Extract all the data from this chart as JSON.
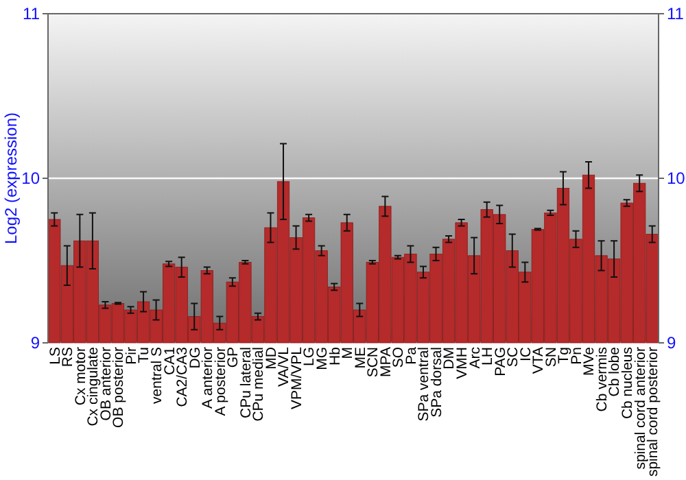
{
  "chart_data": {
    "type": "bar",
    "ylabel": "Log2 (expression)",
    "categories": [
      "LS",
      "RS",
      "Cx motor",
      "Cx cingulate",
      "OB anterior",
      "OB posterior",
      "Pir",
      "Tu",
      "ventral S",
      "CA1",
      "CA2/CA3",
      "DG",
      "A anterior",
      "A posterior",
      "GP",
      "CPu lateral",
      "CPu medial",
      "MD",
      "VA/VL",
      "VPM/VPL",
      "LG",
      "MG",
      "Hb",
      "M",
      "ME",
      "SCN",
      "MPA",
      "SO",
      "Pa",
      "SPa ventral",
      "SPa dorsal",
      "DM",
      "VMH",
      "Arc",
      "LH",
      "PAG",
      "SC",
      "IC",
      "VTA",
      "SN",
      "Tg",
      "Pn",
      "MVe",
      "Cb vermis",
      "Cb lobe",
      "Cb nucleus",
      "spinal cord anterior",
      "spinal cord posterior"
    ],
    "series": [
      {
        "color": "#b52a2a",
        "values": [
          9.75,
          9.47,
          9.62,
          9.62,
          9.23,
          9.24,
          9.2,
          9.25,
          9.2,
          9.48,
          9.46,
          9.16,
          9.44,
          9.12,
          9.37,
          9.49,
          9.16,
          9.7,
          9.98,
          9.64,
          9.76,
          9.56,
          9.34,
          9.73,
          9.2,
          9.49,
          9.83,
          9.52,
          9.54,
          9.43,
          9.54,
          9.63,
          9.73,
          9.53,
          9.81,
          9.78,
          9.56,
          9.43,
          9.69,
          9.79,
          9.94,
          9.63,
          10.02,
          9.53,
          9.51,
          9.85,
          9.97,
          9.66
        ],
        "errors": [
          0.04,
          0.12,
          0.16,
          0.17,
          0.02,
          0.005,
          0.02,
          0.06,
          0.06,
          0.015,
          0.06,
          0.08,
          0.02,
          0.04,
          0.025,
          0.01,
          0.02,
          0.09,
          0.23,
          0.07,
          0.02,
          0.03,
          0.02,
          0.05,
          0.04,
          0.01,
          0.06,
          0.01,
          0.05,
          0.035,
          0.04,
          0.02,
          0.02,
          0.11,
          0.045,
          0.055,
          0.1,
          0.06,
          0.005,
          0.015,
          0.1,
          0.05,
          0.08,
          0.09,
          0.11,
          0.02,
          0.05,
          0.05
        ]
      }
    ],
    "ylim": [
      9,
      11
    ],
    "yticks": [
      9,
      10,
      11
    ],
    "y2lim": [
      9,
      11
    ],
    "y2ticks": [
      9,
      10,
      11
    ],
    "grid": "y"
  }
}
